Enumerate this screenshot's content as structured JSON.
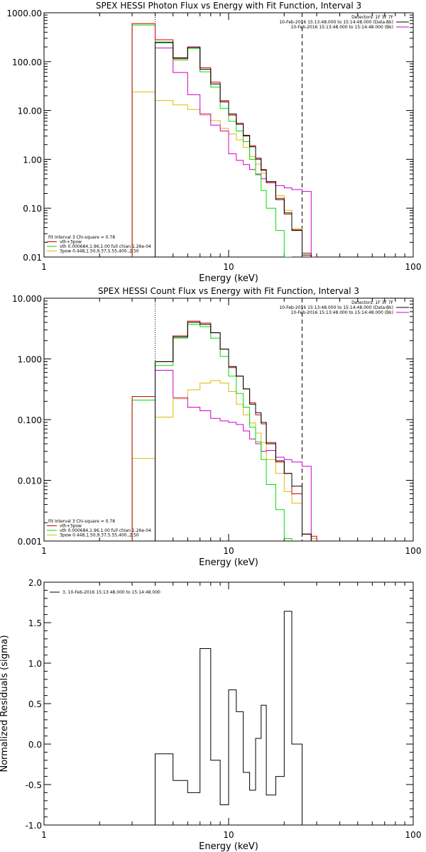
{
  "colors": {
    "data": "#000000",
    "total": "#cc0000",
    "vth": "#00dd00",
    "pow": "#ddbb00",
    "bk": "#cc00cc"
  },
  "panels": [
    {
      "id": "photon",
      "title": "SPEX HESSI Photon Flux vs Energy with Fit Function, Interval 3",
      "xlabel": "Energy (keV)",
      "xtick_labels": [
        "1",
        "10",
        "100"
      ],
      "ytick_labels": [
        "0.01",
        "0.10",
        "1.00",
        "10.00",
        "100.00",
        "1000.00"
      ],
      "legend_right": [
        "Detectors: 1F 3F 7F",
        "10-Feb-2016 15:13:48.000 to 15:14:48.000 (Data-Bk)",
        "10-Feb-2016 15:13:48.000 to 15:14:48.000 (Bk)"
      ],
      "legend_left": [
        "Fit Interval 3   Chi-square = 0.78",
        "vth+3pow",
        "vth 0.000684,1.96,1.00  full chian 1.26e-04",
        "3pow 0.448,1.50,9.37,5.55,400.,2.50"
      ]
    },
    {
      "id": "count",
      "title": "SPEX HESSI Count Flux vs Energy with Fit Function, Interval 3",
      "xlabel": "Energy (keV)",
      "xtick_labels": [
        "1",
        "10",
        "100"
      ],
      "ytick_labels": [
        "0.001",
        "0.010",
        "0.100",
        "1.000",
        "10.000"
      ],
      "legend_right": [
        "Detectors: 1F 3F 7F",
        "10-Feb-2016 15:13:48.000 to 15:14:48.000 (Data-Bk)",
        "10-Feb-2016 15:13:48.000 to 15:14:48.000 (Bk)"
      ],
      "legend_left": [
        "Fit Interval 3   Chi-square = 0.78",
        "vth+3pow",
        "vth 0.000684,1.96,1.00  full chian 1.26e-04",
        "3pow 0.448,1.50,9.37,5.55,400.,2.50"
      ]
    },
    {
      "id": "resid",
      "title": "",
      "xlabel": "Energy (keV)",
      "ylabel": "Normalized Residuals (sigma)",
      "xtick_labels": [
        "1",
        "10",
        "100"
      ],
      "ytick_labels": [
        "-1.0",
        "-0.5",
        "0.0",
        "0.5",
        "1.0",
        "1.5",
        "2.0"
      ],
      "legend_left": [
        "3, 10-Feb-2016 15:13:48.000 to 15:14:48.000"
      ]
    }
  ],
  "chart_data": [
    {
      "type": "line",
      "title": "SPEX HESSI Photon Flux vs Energy with Fit Function, Interval 3",
      "xlabel": "Energy (keV)",
      "ylabel": "",
      "xscale": "log",
      "yscale": "log",
      "xlim": [
        1,
        100
      ],
      "ylim": [
        0.01,
        1000
      ],
      "vlines": [
        {
          "x": 4,
          "style": "dotted"
        },
        {
          "x": 25,
          "style": "dashed"
        }
      ],
      "edges": [
        3.0,
        4.0,
        5.0,
        6.0,
        7.0,
        8.0,
        9.0,
        10.0,
        11.0,
        12.0,
        13.0,
        14.0,
        15.0,
        16.0,
        18.0,
        20.0,
        22.0,
        25.0,
        28.0,
        30.0
      ],
      "series": [
        {
          "color_key": "data",
          "values": [
            null,
            250,
            120,
            195,
            70,
            35,
            15,
            8.5,
            5.2,
            3.1,
            1.8,
            1.05,
            0.6,
            0.35,
            0.15,
            0.08,
            0.035,
            0.011,
            null
          ]
        },
        {
          "color_key": "total",
          "values": [
            600,
            280,
            115,
            200,
            75,
            38,
            16,
            8,
            5.5,
            3.0,
            1.9,
            1.0,
            0.62,
            0.33,
            0.16,
            0.075,
            0.036,
            0.012,
            0.01
          ]
        },
        {
          "color_key": "vth",
          "values": [
            560,
            240,
            108,
            185,
            62,
            30,
            11,
            6,
            3.8,
            2.3,
            1.0,
            0.48,
            0.23,
            0.1,
            0.035,
            0.01,
            null,
            null,
            null
          ]
        },
        {
          "color_key": "pow",
          "values": [
            24,
            16,
            13,
            10.5,
            8,
            6.2,
            4.3,
            3.3,
            2.5,
            1.75,
            1.15,
            0.8,
            0.52,
            0.33,
            0.18,
            0.09,
            0.038,
            0.012,
            0.01
          ]
        },
        {
          "color_key": "bk",
          "values": [
            null,
            190,
            60,
            21,
            8.5,
            5,
            3.8,
            1.3,
            0.95,
            0.78,
            0.62,
            0.5,
            0.4,
            0.35,
            0.29,
            0.26,
            0.24,
            0.22,
            null
          ]
        }
      ]
    },
    {
      "type": "line",
      "title": "SPEX HESSI Count Flux vs Energy with Fit Function, Interval 3",
      "xlabel": "Energy (keV)",
      "ylabel": "",
      "xscale": "log",
      "yscale": "log",
      "xlim": [
        1,
        100
      ],
      "ylim": [
        0.001,
        10
      ],
      "vlines": [
        {
          "x": 4,
          "style": "dotted"
        },
        {
          "x": 25,
          "style": "dashed"
        }
      ],
      "edges": [
        3.0,
        4.0,
        5.0,
        6.0,
        7.0,
        8.0,
        9.0,
        10.0,
        11.0,
        12.0,
        13.0,
        14.0,
        15.0,
        16.0,
        18.0,
        20.0,
        22.0,
        25.0,
        28.0,
        30.0
      ],
      "series": [
        {
          "color_key": "data",
          "values": [
            null,
            0.9,
            2.3,
            4.0,
            3.7,
            2.7,
            1.45,
            0.75,
            0.52,
            0.32,
            0.18,
            0.13,
            0.09,
            0.04,
            0.021,
            0.013,
            0.008,
            0.0013,
            null
          ]
        },
        {
          "color_key": "total",
          "values": [
            0.24,
            0.9,
            2.4,
            4.2,
            3.9,
            2.7,
            1.45,
            0.72,
            0.52,
            0.32,
            0.19,
            0.12,
            0.085,
            0.042,
            0.02,
            0.013,
            0.006,
            0.0013,
            0.0012
          ]
        },
        {
          "color_key": "vth",
          "values": [
            0.21,
            0.78,
            2.2,
            3.7,
            3.4,
            2.2,
            1.1,
            0.52,
            0.27,
            0.16,
            0.075,
            0.043,
            0.022,
            0.0085,
            0.0033,
            0.0011,
            null,
            null,
            null
          ]
        },
        {
          "color_key": "pow",
          "values": [
            0.023,
            0.11,
            0.22,
            0.31,
            0.4,
            0.44,
            0.4,
            0.29,
            0.18,
            0.12,
            0.088,
            0.06,
            0.042,
            0.022,
            0.013,
            0.0065,
            0.0042,
            0.0013,
            0.0011
          ]
        },
        {
          "color_key": "bk",
          "values": [
            null,
            0.65,
            0.23,
            0.16,
            0.14,
            0.105,
            0.095,
            0.09,
            0.083,
            0.065,
            0.048,
            0.04,
            0.03,
            0.031,
            0.024,
            0.022,
            0.02,
            0.017,
            null
          ]
        }
      ]
    },
    {
      "type": "line",
      "title": "",
      "xlabel": "Energy (keV)",
      "ylabel": "Normalized Residuals (sigma)",
      "xscale": "log",
      "yscale": "linear",
      "xlim": [
        1,
        100
      ],
      "ylim": [
        -1,
        2
      ],
      "yticks": [
        -1.0,
        -0.5,
        0.0,
        0.5,
        1.0,
        1.5,
        2.0
      ],
      "edges": [
        4.0,
        5.0,
        6.0,
        7.0,
        8.0,
        9.0,
        10.0,
        11.0,
        12.0,
        13.0,
        14.0,
        15.0,
        16.0,
        18.0,
        20.0,
        22.0,
        25.0
      ],
      "series": [
        {
          "name": "3, 10-Feb-2016 15:13:48.000 to 15:14:48.000",
          "color_key": "data",
          "values": [
            -0.12,
            -0.45,
            -0.6,
            1.18,
            -0.2,
            -0.75,
            0.67,
            0.4,
            -0.35,
            -0.57,
            0.07,
            0.48,
            -0.63,
            -0.4,
            1.64,
            0.0
          ]
        }
      ]
    }
  ]
}
